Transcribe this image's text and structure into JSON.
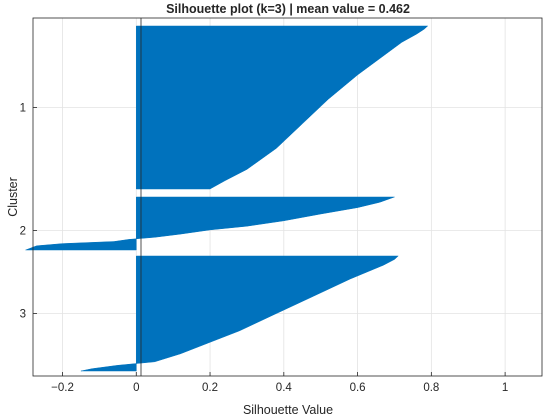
{
  "chart_data": {
    "type": "bar",
    "orientation": "horizontal",
    "title": "Silhouette plot (k=3) | mean value = 0.462",
    "xlabel": "Silhouette Value",
    "ylabel": "Cluster",
    "xlim": [
      -0.28,
      1.1
    ],
    "xticks": [
      -0.2,
      0,
      0.2,
      0.4,
      0.6,
      0.8,
      1
    ],
    "xtick_labels": [
      "−0.2",
      "0",
      "0.2",
      "0.4",
      "0.6",
      "0.8",
      "1"
    ],
    "grid": true,
    "color": "#0072BD",
    "categories": [
      "1",
      "2",
      "3"
    ],
    "series": [
      {
        "cluster": "1",
        "profile": [
          [
            0,
            0.79
          ],
          [
            0.02,
            0.78
          ],
          [
            0.05,
            0.76
          ],
          [
            0.1,
            0.72
          ],
          [
            0.2,
            0.66
          ],
          [
            0.3,
            0.6
          ],
          [
            0.45,
            0.52
          ],
          [
            0.6,
            0.45
          ],
          [
            0.75,
            0.38
          ],
          [
            0.88,
            0.3
          ],
          [
            0.95,
            0.24
          ],
          [
            1,
            0.2
          ]
        ]
      },
      {
        "cluster": "2",
        "profile": [
          [
            0,
            0.7
          ],
          [
            0.1,
            0.66
          ],
          [
            0.2,
            0.6
          ],
          [
            0.32,
            0.5
          ],
          [
            0.45,
            0.4
          ],
          [
            0.55,
            0.3
          ],
          [
            0.62,
            0.2
          ],
          [
            0.7,
            0.12
          ],
          [
            0.76,
            0.05
          ],
          [
            0.8,
            -0.02
          ],
          [
            0.84,
            -0.06
          ],
          [
            0.88,
            -0.2
          ],
          [
            0.92,
            -0.27
          ],
          [
            1,
            -0.3
          ]
        ]
      },
      {
        "cluster": "3",
        "profile": [
          [
            0,
            0.71
          ],
          [
            0.03,
            0.7
          ],
          [
            0.08,
            0.67
          ],
          [
            0.2,
            0.58
          ],
          [
            0.35,
            0.48
          ],
          [
            0.5,
            0.38
          ],
          [
            0.65,
            0.28
          ],
          [
            0.75,
            0.2
          ],
          [
            0.85,
            0.12
          ],
          [
            0.92,
            0.05
          ],
          [
            0.95,
            -0.05
          ],
          [
            0.98,
            -0.12
          ],
          [
            1,
            -0.15
          ]
        ]
      }
    ],
    "mean_silhouette": 0.462
  }
}
